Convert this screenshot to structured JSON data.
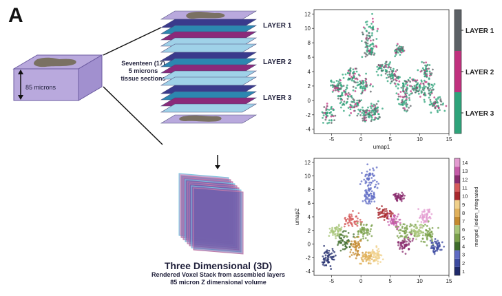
{
  "figure": {
    "panel_letter": "A",
    "block_label": "85 microns",
    "stack_caption": [
      "Seventeen (17)",
      "5 microns",
      "tissue sections"
    ],
    "layer_labels": [
      "LAYER 1",
      "LAYER 2",
      "LAYER 3"
    ],
    "volume_title": "Three Dimensional (3D)",
    "volume_sub": [
      "Rendered Voxel Stack from assembled layers",
      "85 micron Z dimensional volume"
    ]
  },
  "colors": {
    "layer1": "#5c6166",
    "layer2": "#c0317e",
    "layer3": "#2ea37a",
    "slab_light": "#9fd1e8",
    "slab_dark_blue": "#3a3a8c",
    "slab_teal": "#2c87b0",
    "slab_magenta": "#8b2a7a",
    "box_face": "#b9a9dd",
    "tissue": "#7a7163"
  },
  "chart_data": [
    {
      "type": "scatter",
      "xlabel": "umap1",
      "ylabel": "",
      "xlim": [
        -8,
        15
      ],
      "ylim": [
        -4.6,
        12.6
      ],
      "xticks": [
        -5,
        0,
        5,
        10,
        15
      ],
      "yticks": [
        -4,
        -2,
        0,
        2,
        4,
        6,
        8,
        10,
        12
      ],
      "legend": {
        "placement": "right",
        "type": "colorbar"
      },
      "series": [
        {
          "name": "LAYER 1",
          "color": "#5c6166"
        },
        {
          "name": "LAYER 2",
          "color": "#c0317e"
        },
        {
          "name": "LAYER 3",
          "color": "#2ea37a"
        }
      ]
    },
    {
      "type": "scatter",
      "xlabel": "",
      "ylabel": "umap2",
      "xlim": [
        -8,
        15
      ],
      "ylim": [
        -4.6,
        12.6
      ],
      "xticks": [
        -5,
        0,
        5,
        10,
        15
      ],
      "yticks": [
        -4,
        -2,
        0,
        2,
        4,
        6,
        8,
        10,
        12
      ],
      "colorbar_label": "merged_leiden_integrated",
      "legend": {
        "placement": "right",
        "type": "colorbar"
      },
      "categories": [
        "1",
        "2",
        "3",
        "4",
        "5",
        "6",
        "7",
        "8",
        "9",
        "10",
        "11",
        "12",
        "13",
        "14"
      ],
      "category_colors": [
        "#1f2a6b",
        "#3c4aa0",
        "#5f6bc4",
        "#3d6b2a",
        "#7aa04a",
        "#a8c679",
        "#c48a2f",
        "#e0b05a",
        "#f0d08a",
        "#a8282d",
        "#d65a5a",
        "#8a2b6e",
        "#c55aa8",
        "#e39bd0"
      ]
    }
  ]
}
